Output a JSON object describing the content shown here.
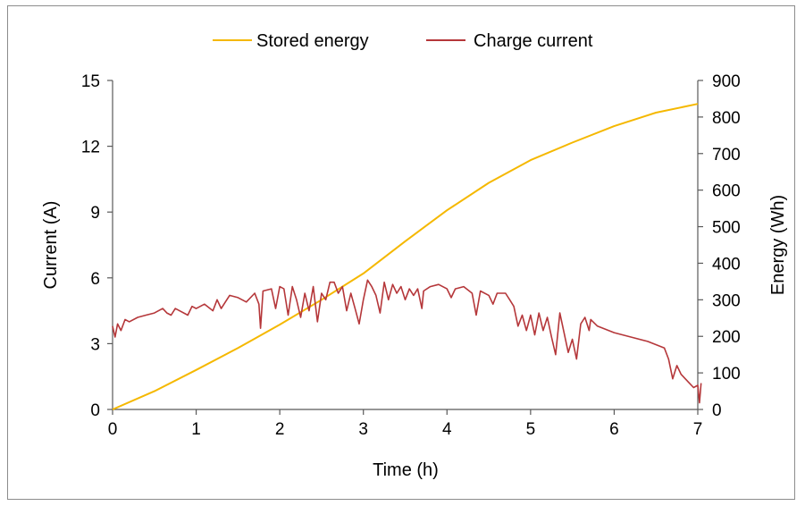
{
  "chart_data": {
    "type": "line",
    "title": "",
    "xlabel": "Time (h)",
    "ylabel_left": "Current (A)",
    "ylabel_right": "Energy (Wh)",
    "xlim": [
      0,
      7
    ],
    "ylim_left": [
      0,
      15
    ],
    "ylim_right": [
      0,
      900
    ],
    "x_ticks": [
      "0",
      "1",
      "2",
      "3",
      "4",
      "5",
      "6",
      "7"
    ],
    "y_left_ticks": [
      "0",
      "3",
      "6",
      "9",
      "12",
      "15"
    ],
    "y_right_ticks": [
      "0",
      "100",
      "200",
      "300",
      "400",
      "500",
      "600",
      "700",
      "800",
      "900"
    ],
    "grid": false,
    "legend_position": "top-center",
    "series": [
      {
        "name": "Stored energy",
        "axis": "right",
        "color": "#F5B800",
        "points": [
          [
            0,
            0
          ],
          [
            0.5,
            50
          ],
          [
            1,
            108
          ],
          [
            1.5,
            168
          ],
          [
            2,
            232
          ],
          [
            2.5,
            300
          ],
          [
            3,
            372
          ],
          [
            3.5,
            460
          ],
          [
            4,
            545
          ],
          [
            4.5,
            620
          ],
          [
            5,
            682
          ],
          [
            5.5,
            730
          ],
          [
            6,
            775
          ],
          [
            6.5,
            812
          ],
          [
            7,
            836
          ]
        ]
      },
      {
        "name": "Charge current",
        "axis": "left",
        "color": "#B5373A",
        "points": [
          [
            0,
            3.8
          ],
          [
            0.03,
            3.3
          ],
          [
            0.06,
            3.9
          ],
          [
            0.1,
            3.6
          ],
          [
            0.15,
            4.1
          ],
          [
            0.2,
            4.0
          ],
          [
            0.3,
            4.2
          ],
          [
            0.4,
            4.3
          ],
          [
            0.5,
            4.4
          ],
          [
            0.6,
            4.6
          ],
          [
            0.65,
            4.4
          ],
          [
            0.7,
            4.3
          ],
          [
            0.75,
            4.6
          ],
          [
            0.8,
            4.5
          ],
          [
            0.9,
            4.3
          ],
          [
            0.95,
            4.7
          ],
          [
            1.0,
            4.6
          ],
          [
            1.1,
            4.8
          ],
          [
            1.2,
            4.5
          ],
          [
            1.25,
            5.0
          ],
          [
            1.3,
            4.6
          ],
          [
            1.4,
            5.2
          ],
          [
            1.5,
            5.1
          ],
          [
            1.6,
            4.9
          ],
          [
            1.7,
            5.3
          ],
          [
            1.75,
            4.8
          ],
          [
            1.77,
            3.7
          ],
          [
            1.8,
            5.4
          ],
          [
            1.9,
            5.5
          ],
          [
            1.95,
            4.6
          ],
          [
            2.0,
            5.6
          ],
          [
            2.05,
            5.5
          ],
          [
            2.1,
            4.3
          ],
          [
            2.15,
            5.6
          ],
          [
            2.2,
            5.0
          ],
          [
            2.25,
            4.2
          ],
          [
            2.3,
            5.3
          ],
          [
            2.35,
            4.5
          ],
          [
            2.4,
            5.6
          ],
          [
            2.45,
            4.0
          ],
          [
            2.5,
            5.3
          ],
          [
            2.55,
            5.0
          ],
          [
            2.6,
            5.8
          ],
          [
            2.65,
            5.8
          ],
          [
            2.7,
            5.3
          ],
          [
            2.75,
            5.6
          ],
          [
            2.8,
            4.5
          ],
          [
            2.85,
            5.3
          ],
          [
            2.9,
            4.6
          ],
          [
            2.95,
            3.9
          ],
          [
            3.0,
            5.0
          ],
          [
            3.05,
            5.9
          ],
          [
            3.1,
            5.6
          ],
          [
            3.15,
            5.2
          ],
          [
            3.2,
            4.4
          ],
          [
            3.25,
            5.8
          ],
          [
            3.3,
            5.0
          ],
          [
            3.35,
            5.7
          ],
          [
            3.4,
            5.3
          ],
          [
            3.45,
            5.6
          ],
          [
            3.5,
            5.0
          ],
          [
            3.55,
            5.5
          ],
          [
            3.6,
            5.2
          ],
          [
            3.65,
            5.5
          ],
          [
            3.7,
            4.6
          ],
          [
            3.72,
            5.4
          ],
          [
            3.8,
            5.6
          ],
          [
            3.9,
            5.7
          ],
          [
            4.0,
            5.5
          ],
          [
            4.05,
            5.1
          ],
          [
            4.1,
            5.5
          ],
          [
            4.2,
            5.6
          ],
          [
            4.3,
            5.3
          ],
          [
            4.35,
            4.3
          ],
          [
            4.4,
            5.4
          ],
          [
            4.5,
            5.2
          ],
          [
            4.55,
            4.8
          ],
          [
            4.6,
            5.3
          ],
          [
            4.7,
            5.3
          ],
          [
            4.75,
            5.0
          ],
          [
            4.8,
            4.7
          ],
          [
            4.85,
            3.8
          ],
          [
            4.9,
            4.3
          ],
          [
            4.95,
            3.6
          ],
          [
            5.0,
            4.3
          ],
          [
            5.05,
            3.4
          ],
          [
            5.1,
            4.4
          ],
          [
            5.15,
            3.6
          ],
          [
            5.2,
            4.2
          ],
          [
            5.25,
            3.3
          ],
          [
            5.3,
            2.5
          ],
          [
            5.35,
            4.4
          ],
          [
            5.4,
            3.5
          ],
          [
            5.45,
            2.6
          ],
          [
            5.5,
            3.2
          ],
          [
            5.55,
            2.3
          ],
          [
            5.6,
            3.9
          ],
          [
            5.65,
            4.2
          ],
          [
            5.7,
            3.6
          ],
          [
            5.72,
            4.1
          ],
          [
            5.8,
            3.8
          ],
          [
            6.0,
            3.5
          ],
          [
            6.2,
            3.3
          ],
          [
            6.4,
            3.1
          ],
          [
            6.6,
            2.8
          ],
          [
            6.65,
            2.3
          ],
          [
            6.7,
            1.4
          ],
          [
            6.75,
            2.0
          ],
          [
            6.8,
            1.6
          ],
          [
            6.85,
            1.4
          ],
          [
            6.9,
            1.2
          ],
          [
            6.95,
            1.0
          ],
          [
            7.0,
            1.1
          ],
          [
            7.02,
            0.3
          ],
          [
            7.04,
            1.2
          ]
        ]
      }
    ]
  }
}
